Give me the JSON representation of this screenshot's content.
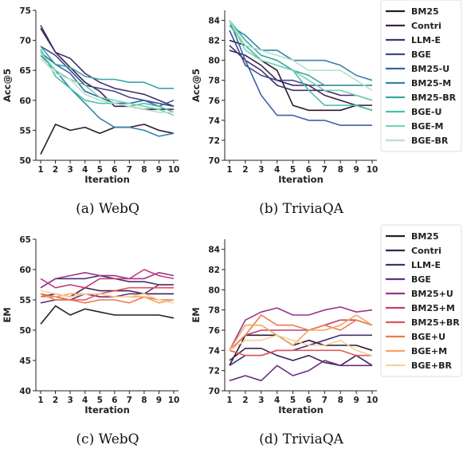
{
  "chart_data": [
    {
      "type": "line",
      "caption": "(a) WebQ",
      "xlabel": "Iteration",
      "ylabel": "Acc@5",
      "x": [
        1,
        2,
        3,
        4,
        5,
        6,
        7,
        8,
        9,
        10
      ],
      "ylim": [
        50,
        75
      ],
      "yticks": [
        50,
        55,
        60,
        65,
        70,
        75
      ],
      "series": [
        {
          "name": "BM25",
          "color": "#2a1a2e",
          "values": [
            51,
            56,
            55,
            55.5,
            54.5,
            55.5,
            55.5,
            56,
            55,
            54.5
          ]
        },
        {
          "name": "Contri",
          "color": "#3c2350",
          "values": [
            72,
            68,
            65.5,
            63,
            61.5,
            59,
            59,
            58.5,
            58.5,
            58.5
          ]
        },
        {
          "name": "LLM-E",
          "color": "#45306e",
          "values": [
            72.5,
            68,
            67,
            64.5,
            63,
            62,
            61.5,
            61,
            60,
            59
          ]
        },
        {
          "name": "BGE",
          "color": "#3f4a8a",
          "values": [
            69,
            67.5,
            65,
            62.5,
            62,
            61.5,
            60.5,
            60,
            59.5,
            59
          ]
        },
        {
          "name": "BM25-U",
          "color": "#3a64a3",
          "values": [
            68,
            66,
            64.5,
            61.5,
            60.5,
            59.5,
            59.5,
            60,
            59,
            60
          ]
        },
        {
          "name": "BM25-M",
          "color": "#3583ad",
          "values": [
            67.5,
            65,
            62,
            59.5,
            57,
            55.5,
            55.5,
            55,
            54,
            54.5
          ]
        },
        {
          "name": "BM25-BR",
          "color": "#38a5a6",
          "values": [
            69,
            66,
            65.5,
            64,
            63.5,
            63.5,
            63,
            63,
            62,
            62
          ]
        },
        {
          "name": "BGE-U",
          "color": "#4ac2a5",
          "values": [
            68.5,
            64,
            62,
            60,
            59.5,
            59.5,
            59,
            59.5,
            59,
            58
          ]
        },
        {
          "name": "BGE-M",
          "color": "#78d3b0",
          "values": [
            68,
            65,
            63.5,
            62.5,
            60.5,
            60,
            59.5,
            59,
            58.5,
            57.5
          ]
        },
        {
          "name": "BGE-BR",
          "color": "#b3e3c8",
          "values": [
            67,
            64.5,
            63.5,
            61,
            60,
            59.5,
            59,
            58.5,
            58,
            58
          ]
        }
      ]
    },
    {
      "type": "line",
      "caption": "(b) TriviaQA",
      "xlabel": "Iteration",
      "ylabel": "Acc@5",
      "x": [
        1,
        2,
        3,
        4,
        5,
        6,
        7,
        8,
        9,
        10
      ],
      "ylim": [
        70,
        85
      ],
      "yticks": [
        70,
        72,
        74,
        76,
        78,
        80,
        82,
        84
      ],
      "series": [
        {
          "name": "BM25",
          "color": "#2a1a2e",
          "values": [
            82,
            81.5,
            80,
            79,
            75.5,
            75,
            75,
            75,
            75.5,
            75
          ]
        },
        {
          "name": "Contri",
          "color": "#3c2350",
          "values": [
            81,
            80.5,
            79.5,
            78,
            77.5,
            77.5,
            76.5,
            76,
            75.5,
            75.5
          ]
        },
        {
          "name": "LLM-E",
          "color": "#45306e",
          "values": [
            81.5,
            80,
            79,
            77.5,
            77,
            77,
            77,
            76.5,
            76.5,
            76
          ]
        },
        {
          "name": "BGE",
          "color": "#3f4a8a",
          "values": [
            83,
            79.5,
            78.5,
            78,
            78,
            77.5,
            77.5,
            77.5,
            77.5,
            77.5
          ]
        },
        {
          "name": "BM25-U",
          "color": "#3a64a3",
          "values": [
            84,
            80,
            76.5,
            74.5,
            74.5,
            74,
            74,
            73.5,
            73.5,
            73.5
          ]
        },
        {
          "name": "BM25-M",
          "color": "#3583ad",
          "values": [
            83.5,
            82.5,
            81,
            81,
            80,
            80,
            80,
            79.5,
            78.5,
            78
          ]
        },
        {
          "name": "BM25-BR",
          "color": "#38a5a6",
          "values": [
            84,
            82,
            80.5,
            80,
            79,
            78.5,
            77.5,
            77.5,
            77.5,
            77.5
          ]
        },
        {
          "name": "BGE-U",
          "color": "#4ac2a5",
          "values": [
            83.5,
            81.5,
            80,
            79.5,
            79,
            77,
            75.5,
            75.5,
            75.5,
            75
          ]
        },
        {
          "name": "BGE-M",
          "color": "#78d3b0",
          "values": [
            84,
            81,
            80,
            79.5,
            79,
            78,
            77,
            77,
            76.5,
            76
          ]
        },
        {
          "name": "BGE-BR",
          "color": "#b3e3c8",
          "values": [
            84,
            81.5,
            81,
            80.5,
            80,
            79,
            79,
            79,
            78,
            77
          ]
        }
      ]
    },
    {
      "type": "line",
      "caption": "(c) WebQ",
      "xlabel": "Iteration",
      "ylabel": "EM",
      "x": [
        1,
        2,
        3,
        4,
        5,
        6,
        7,
        8,
        9,
        10
      ],
      "ylim": [
        40,
        65
      ],
      "yticks": [
        40,
        45,
        50,
        55,
        60,
        65
      ],
      "series": [
        {
          "name": "BM25",
          "color": "#2a1a2e",
          "values": [
            51,
            54,
            52.5,
            53.5,
            53,
            52.5,
            52.5,
            52.5,
            52.5,
            52
          ]
        },
        {
          "name": "Contri",
          "color": "#3c2350",
          "values": [
            55.5,
            56,
            55.5,
            57,
            56.5,
            56.5,
            56.5,
            56,
            56,
            56
          ]
        },
        {
          "name": "LLM-E",
          "color": "#45306e",
          "values": [
            57,
            58.5,
            58.5,
            58.5,
            59,
            58.5,
            58,
            58,
            57.5,
            57.5
          ]
        },
        {
          "name": "BGE",
          "color": "#6a2e80",
          "values": [
            54.5,
            55,
            55,
            56,
            55.5,
            55.5,
            56,
            56,
            57.5,
            57.5
          ]
        },
        {
          "name": "BM25+U",
          "color": "#9a3588",
          "values": [
            57,
            58.5,
            59,
            59.5,
            59,
            59,
            58.5,
            58.5,
            59.5,
            59
          ]
        },
        {
          "name": "BM25+M",
          "color": "#c73b72",
          "values": [
            58.5,
            57,
            57.5,
            57,
            58.5,
            58.5,
            58.5,
            60,
            59,
            58.5
          ]
        },
        {
          "name": "BM25+BR",
          "color": "#e0575c",
          "values": [
            56,
            55.5,
            55,
            55,
            56,
            56.5,
            57,
            57,
            57,
            57
          ]
        },
        {
          "name": "BGE+U",
          "color": "#ee7a4e",
          "values": [
            56,
            55,
            55,
            54.5,
            55,
            55,
            54.5,
            55.5,
            55,
            55
          ]
        },
        {
          "name": "BGE+M",
          "color": "#f5a55c",
          "values": [
            55.5,
            55.5,
            56,
            56,
            56,
            55.5,
            55.5,
            55.5,
            54.5,
            55
          ]
        },
        {
          "name": "BGE+BR",
          "color": "#f7d0a2",
          "values": [
            56.5,
            56,
            55.5,
            56,
            56,
            55.5,
            55.5,
            56,
            55,
            54.5
          ]
        }
      ]
    },
    {
      "type": "line",
      "caption": "(d) TriviaQA",
      "xlabel": "Iteration",
      "ylabel": "EM",
      "x": [
        1,
        2,
        3,
        4,
        5,
        6,
        7,
        8,
        9,
        10
      ],
      "ylim": [
        70,
        85
      ],
      "yticks": [
        70,
        72,
        74,
        76,
        78,
        80,
        82,
        84
      ],
      "series": [
        {
          "name": "BM25",
          "color": "#2a1a2e",
          "values": [
            72.5,
            75.5,
            75.5,
            75.5,
            74.5,
            75,
            74.5,
            74.5,
            74.5,
            74
          ]
        },
        {
          "name": "Contri",
          "color": "#3c2350",
          "values": [
            73,
            74.2,
            74.2,
            73.5,
            73,
            73.5,
            72.8,
            72.5,
            73.5,
            72.5
          ]
        },
        {
          "name": "LLM-E",
          "color": "#45306e",
          "values": [
            72.5,
            73.5,
            73.5,
            74,
            74,
            74.5,
            75,
            75.5,
            75.5,
            75.5
          ]
        },
        {
          "name": "BGE",
          "color": "#6a2e80",
          "values": [
            71,
            71.5,
            71,
            72.5,
            71.5,
            72,
            73,
            72.5,
            72.5,
            72.5
          ]
        },
        {
          "name": "BM25+U",
          "color": "#9a3588",
          "values": [
            74,
            77,
            77.8,
            78.2,
            77.5,
            77.5,
            78,
            78.3,
            77.8,
            78
          ]
        },
        {
          "name": "BM25+M",
          "color": "#c73b72",
          "values": [
            74,
            75.5,
            76,
            76,
            76,
            76,
            76.5,
            77,
            77,
            76.5
          ]
        },
        {
          "name": "BM25+BR",
          "color": "#e0575c",
          "values": [
            74,
            73.5,
            73.5,
            74,
            74,
            74,
            74,
            74,
            73.5,
            73.5
          ]
        },
        {
          "name": "BGE+U",
          "color": "#ee7a4e",
          "values": [
            74,
            75.5,
            77.5,
            76.5,
            76.5,
            76,
            76.5,
            76,
            77,
            76.5
          ]
        },
        {
          "name": "BGE+M",
          "color": "#f5a55c",
          "values": [
            74,
            76.5,
            76.5,
            75.5,
            74.5,
            76,
            76,
            76.5,
            77.5,
            76.5
          ]
        },
        {
          "name": "BGE+BR",
          "color": "#f7d0a2",
          "values": [
            74,
            75,
            75,
            75.5,
            75,
            74.5,
            74.5,
            75,
            74,
            73.5
          ]
        }
      ]
    }
  ]
}
